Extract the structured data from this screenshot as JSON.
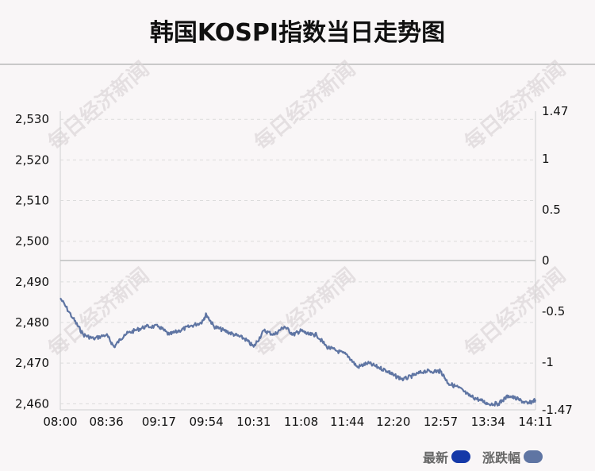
{
  "title": "韩国KOSPI指数当日走势图",
  "watermark": "每日经济新闻",
  "legend": [
    {
      "label": "最新",
      "color": "#1539a8"
    },
    {
      "label": "涨跌幅",
      "color": "#5f75a3"
    }
  ],
  "chart_data": {
    "type": "line",
    "title": "韩国KOSPI指数当日走势图",
    "x_ticks": [
      "08:00",
      "08:36",
      "09:17",
      "09:54",
      "10:31",
      "11:08",
      "11:44",
      "12:20",
      "12:57",
      "13:34",
      "14:11"
    ],
    "y_left_ticks": [
      "2,460",
      "2,470",
      "2,480",
      "2,490",
      "2,500",
      "2,510",
      "2,520",
      "2,530"
    ],
    "y_left_range": [
      2458.5,
      2532
    ],
    "y_right_ticks": [
      "-1.47",
      "-1",
      "-0.5",
      "0",
      "0.5",
      "1",
      "1.47"
    ],
    "y_right_range": [
      -1.47,
      1.47
    ],
    "reference_close": 2495,
    "line_color": "#5f75a3",
    "series": [
      {
        "name": "最新",
        "x": [
          "08:00",
          "08:10",
          "08:18",
          "08:26",
          "08:36",
          "08:42",
          "08:50",
          "08:58",
          "09:07",
          "09:17",
          "09:25",
          "09:33",
          "09:41",
          "09:50",
          "09:54",
          "10:00",
          "10:08",
          "10:16",
          "10:24",
          "10:31",
          "10:39",
          "10:47",
          "10:55",
          "11:02",
          "11:08",
          "11:14",
          "11:20",
          "11:28",
          "11:36",
          "11:44",
          "11:52",
          "12:00",
          "12:08",
          "12:16",
          "12:20",
          "12:28",
          "12:36",
          "12:44",
          "12:52",
          "12:57",
          "13:03",
          "13:11",
          "13:19",
          "13:27",
          "13:34",
          "13:42",
          "13:50",
          "13:58",
          "14:05",
          "14:11"
        ],
        "y": [
          2486,
          2481,
          2477,
          2476,
          2477,
          2474,
          2477,
          2478,
          2479,
          2479,
          2477,
          2478,
          2479,
          2480,
          2482,
          2479,
          2478,
          2477,
          2476,
          2474,
          2478,
          2477,
          2479,
          2477,
          2478,
          2477,
          2477,
          2474,
          2473,
          2472,
          2469,
          2470,
          2469,
          2468,
          2467,
          2466,
          2467,
          2468,
          2468,
          2468,
          2465,
          2464,
          2462,
          2461,
          2460,
          2460,
          2462,
          2461,
          2460,
          2461
        ]
      }
    ]
  }
}
